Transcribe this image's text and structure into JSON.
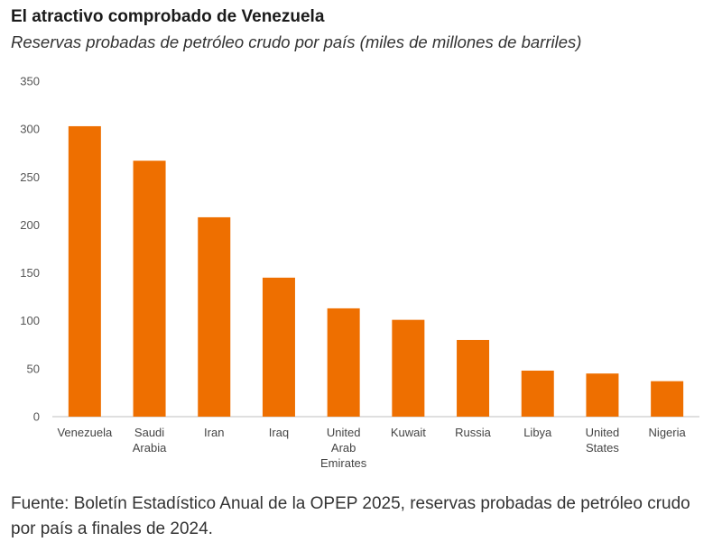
{
  "title": "El atractivo comprobado de Venezuela",
  "subtitle": "Reservas probadas de petróleo crudo por país (miles de millones de barriles)",
  "source": "Fuente: Boletín Estadístico Anual de la OPEP 2025, reservas probadas de petróleo crudo por país a finales de 2024.",
  "colors": {
    "bar": "#ee6f00",
    "axis": "#bfbfbf"
  },
  "chart_data": {
    "type": "bar",
    "categories": [
      "Venezuela",
      "Saudi Arabia",
      "Iran",
      "Iraq",
      "United Arab Emirates",
      "Kuwait",
      "Russia",
      "Libya",
      "United States",
      "Nigeria"
    ],
    "category_lines": [
      [
        "Venezuela"
      ],
      [
        "Saudi",
        "Arabia"
      ],
      [
        "Iran"
      ],
      [
        "Iraq"
      ],
      [
        "United",
        "Arab",
        "Emirates"
      ],
      [
        "Kuwait"
      ],
      [
        "Russia"
      ],
      [
        "Libya"
      ],
      [
        "United",
        "States"
      ],
      [
        "Nigeria"
      ]
    ],
    "values": [
      303,
      267,
      208,
      145,
      113,
      101,
      80,
      48,
      45,
      37
    ],
    "ylim": [
      0,
      350
    ],
    "yticks": [
      0,
      50,
      100,
      150,
      200,
      250,
      300,
      350
    ],
    "grid": false,
    "legend": "none"
  }
}
